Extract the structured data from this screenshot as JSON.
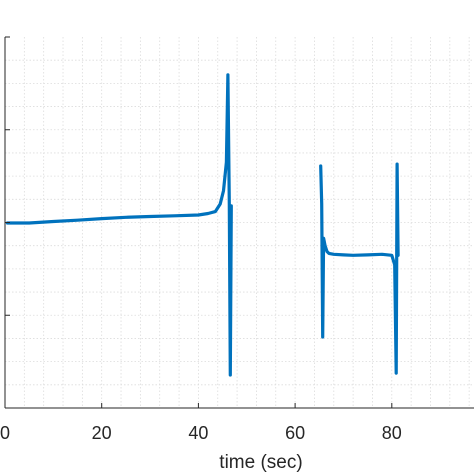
{
  "chart_data": {
    "type": "line",
    "title": "",
    "xlabel": "time (sec)",
    "ylabel": "",
    "xlim": [
      0,
      97
    ],
    "x_ticks": [
      0,
      20,
      40,
      60,
      80
    ],
    "x_minor_step": 4,
    "y_major_ticks": 4,
    "y_minor_per_major": 4,
    "grid": true,
    "line_color": "#0072bd",
    "series": [
      {
        "segments": [
          {
            "x": [
              0.5,
              5,
              10,
              15,
              20,
              25,
              30,
              35,
              40,
              42,
              43.5,
              44.5,
              45.2,
              45.8,
              46.1,
              46.4,
              46.6,
              46.8
            ],
            "y": [
              0.0,
              0.0,
              0.008,
              0.015,
              0.023,
              0.03,
              0.034,
              0.038,
              0.042,
              0.05,
              0.06,
              0.1,
              0.17,
              0.32,
              0.78,
              0.1,
              -0.8,
              0.09
            ]
          },
          {
            "x": [
              65.3,
              65.5,
              65.7,
              65.9,
              66.2,
              66.6,
              67.0,
              68,
              70,
              72,
              75,
              78,
              80.0,
              80.6,
              80.9,
              81.1,
              81.3
            ],
            "y": [
              0.3,
              0.1,
              -0.6,
              -0.08,
              -0.12,
              -0.15,
              -0.16,
              -0.165,
              -0.168,
              -0.17,
              -0.168,
              -0.165,
              -0.17,
              -0.22,
              -0.79,
              0.31,
              -0.17
            ]
          }
        ]
      }
    ]
  },
  "axes": {
    "x_tick_labels": [
      "0",
      "20",
      "40",
      "60",
      "80"
    ]
  }
}
